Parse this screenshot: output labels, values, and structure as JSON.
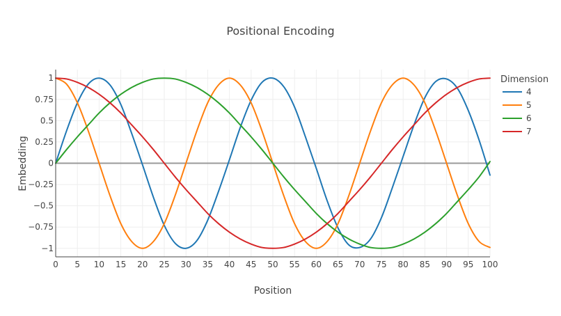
{
  "chart_data": {
    "type": "line",
    "title": "Positional Encoding",
    "xlabel": "Position",
    "ylabel": "Embedding",
    "xlim": [
      0,
      100
    ],
    "ylim": [
      -1.1,
      1.1
    ],
    "grid": true,
    "legend": {
      "title": "Dimension",
      "placement": "right"
    },
    "x_ticks": [
      0,
      5,
      10,
      15,
      20,
      25,
      30,
      35,
      40,
      45,
      50,
      55,
      60,
      65,
      70,
      75,
      80,
      85,
      90,
      95,
      100
    ],
    "y_ticks": [
      1,
      0.75,
      0.5,
      0.25,
      0,
      -0.25,
      -0.5,
      -0.75,
      -1
    ],
    "y_tick_labels": [
      "1",
      "0.75",
      "0.5",
      "0.25",
      "0",
      "−0.25",
      "−0.5",
      "−0.75",
      "−1"
    ],
    "x": [
      0,
      2.5,
      5,
      7.5,
      10,
      12.5,
      15,
      17.5,
      20,
      22.5,
      25,
      27.5,
      30,
      32.5,
      35,
      37.5,
      40,
      42.5,
      45,
      47.5,
      50,
      52.5,
      55,
      57.5,
      60,
      62.5,
      65,
      67.5,
      70,
      72.5,
      75,
      77.5,
      80,
      82.5,
      85,
      87.5,
      90,
      92.5,
      95,
      97.5,
      100
    ],
    "series": [
      {
        "name": "4",
        "color": "#1f77b4",
        "values": [
          0,
          0.38,
          0.71,
          0.93,
          1.0,
          0.92,
          0.69,
          0.35,
          -0.02,
          -0.4,
          -0.73,
          -0.94,
          -1.0,
          -0.91,
          -0.67,
          -0.33,
          0.04,
          0.42,
          0.74,
          0.95,
          1.0,
          0.9,
          0.66,
          0.31,
          -0.06,
          -0.44,
          -0.76,
          -0.96,
          -0.99,
          -0.89,
          -0.64,
          -0.29,
          0.08,
          0.45,
          0.77,
          0.96,
          0.99,
          0.88,
          0.62,
          0.27,
          -0.14
        ]
      },
      {
        "name": "5",
        "color": "#ff7f0e",
        "values": [
          1.0,
          0.93,
          0.71,
          0.38,
          0.0,
          -0.38,
          -0.71,
          -0.92,
          -1.0,
          -0.92,
          -0.71,
          -0.38,
          0.0,
          0.38,
          0.71,
          0.92,
          1.0,
          0.92,
          0.71,
          0.38,
          0.0,
          -0.38,
          -0.71,
          -0.92,
          -1.0,
          -0.92,
          -0.71,
          -0.38,
          0.0,
          0.38,
          0.71,
          0.92,
          1.0,
          0.92,
          0.71,
          0.38,
          0.0,
          -0.38,
          -0.71,
          -0.92,
          -0.99
        ]
      },
      {
        "name": "6",
        "color": "#2ca02c",
        "values": [
          0,
          0.16,
          0.31,
          0.45,
          0.59,
          0.71,
          0.81,
          0.89,
          0.95,
          0.99,
          1.0,
          0.99,
          0.95,
          0.89,
          0.81,
          0.71,
          0.59,
          0.45,
          0.31,
          0.16,
          0.0,
          -0.16,
          -0.31,
          -0.45,
          -0.59,
          -0.71,
          -0.81,
          -0.89,
          -0.95,
          -0.99,
          -1.0,
          -0.99,
          -0.95,
          -0.89,
          -0.81,
          -0.71,
          -0.59,
          -0.45,
          -0.31,
          -0.16,
          0.02
        ]
      },
      {
        "name": "7",
        "color": "#d62728",
        "values": [
          1.0,
          0.99,
          0.95,
          0.89,
          0.81,
          0.71,
          0.59,
          0.45,
          0.31,
          0.16,
          0.0,
          -0.16,
          -0.31,
          -0.45,
          -0.59,
          -0.71,
          -0.81,
          -0.89,
          -0.95,
          -0.99,
          -1.0,
          -0.99,
          -0.95,
          -0.89,
          -0.81,
          -0.71,
          -0.59,
          -0.45,
          -0.31,
          -0.16,
          0.0,
          0.16,
          0.31,
          0.45,
          0.59,
          0.71,
          0.81,
          0.89,
          0.95,
          0.99,
          1.0
        ]
      }
    ]
  }
}
